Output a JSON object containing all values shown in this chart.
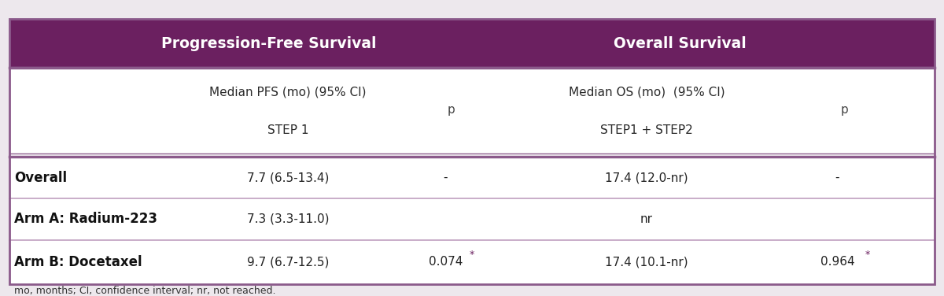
{
  "header_bg_color": "#6B2060",
  "header_text_color": "#FFFFFF",
  "bg_color": "#EDE8ED",
  "table_bg_color": "#FFFFFF",
  "outer_border_color": "#8B5A8B",
  "row_divider_color": "#C0A0C0",
  "footnote_text": "mo, months; CI, confidence interval; nr, not reached.",
  "pfs_header": "Progression-Free Survival",
  "os_header": "Overall Survival",
  "subheader_pfs_line1": "Median PFS (mo) (95% CI)",
  "subheader_pfs_line2": "STEP 1",
  "subheader_p1": "p",
  "subheader_os_line1": "Median OS (mo)  (95% CI)",
  "subheader_os_line2": "STEP1 + STEP2",
  "subheader_p2": "p",
  "rows": [
    {
      "label": "Overall",
      "pfs": "7.7 (6.5-13.4)",
      "p_pfs": "-",
      "p_pfs_star": false,
      "os": "17.4 (12.0-nr)",
      "p_os": "-",
      "p_os_star": false
    },
    {
      "label": "Arm A: Radium-223",
      "pfs": "7.3 (3.3-11.0)",
      "p_pfs": "",
      "p_pfs_star": false,
      "os": "nr",
      "p_os": "",
      "p_os_star": false
    },
    {
      "label": "Arm B: Docetaxel",
      "pfs": "9.7 (6.7-12.5)",
      "p_pfs": "0.074",
      "p_pfs_star": true,
      "os": "17.4 (10.1-nr)",
      "p_os": "0.964",
      "p_os_star": true
    }
  ]
}
